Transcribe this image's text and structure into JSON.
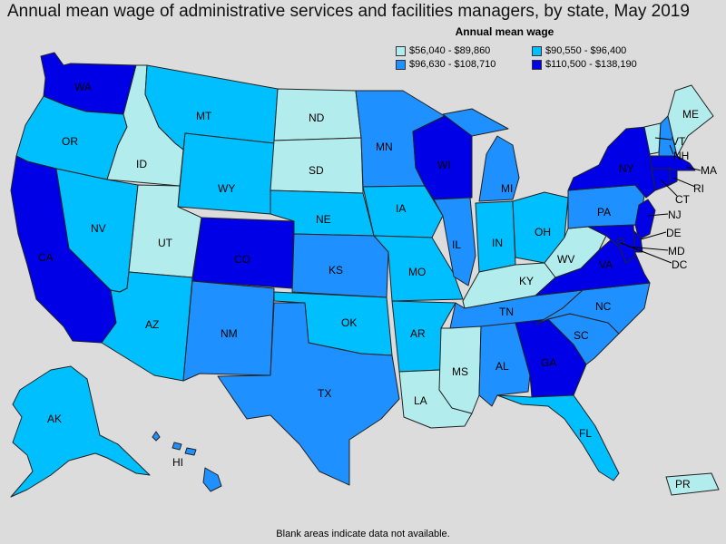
{
  "title": "Annual mean wage of administrative services and facilities managers, by state, May 2019",
  "legend": {
    "title": "Annual mean wage",
    "items": [
      {
        "label": "$56,040 - $89,860",
        "color": "#b3ecec"
      },
      {
        "label": "$90,550 - $96,400",
        "color": "#00bfff"
      },
      {
        "label": "$96,630 - $108,710",
        "color": "#1e90ff"
      },
      {
        "label": "$110,500 - $138,190",
        "color": "#0000e6"
      }
    ]
  },
  "footnote": "Blank areas indicate data not available.",
  "states": {
    "WA": {
      "label": "WA",
      "tier": 3
    },
    "OR": {
      "label": "OR",
      "tier": 1
    },
    "CA": {
      "label": "CA",
      "tier": 3
    },
    "ID": {
      "label": "ID",
      "tier": 0
    },
    "NV": {
      "label": "NV",
      "tier": 1
    },
    "MT": {
      "label": "MT",
      "tier": 1
    },
    "WY": {
      "label": "WY",
      "tier": 1
    },
    "UT": {
      "label": "UT",
      "tier": 0
    },
    "AZ": {
      "label": "AZ",
      "tier": 1
    },
    "CO": {
      "label": "CO",
      "tier": 3
    },
    "NM": {
      "label": "NM",
      "tier": 2
    },
    "ND": {
      "label": "ND",
      "tier": 0
    },
    "SD": {
      "label": "SD",
      "tier": 0
    },
    "NE": {
      "label": "NE",
      "tier": 1
    },
    "KS": {
      "label": "KS",
      "tier": 2
    },
    "OK": {
      "label": "OK",
      "tier": 1
    },
    "TX": {
      "label": "TX",
      "tier": 2
    },
    "MN": {
      "label": "MN",
      "tier": 2
    },
    "IA": {
      "label": "IA",
      "tier": 1
    },
    "MO": {
      "label": "MO",
      "tier": 1
    },
    "AR": {
      "label": "AR",
      "tier": 1
    },
    "LA": {
      "label": "LA",
      "tier": 0
    },
    "WI": {
      "label": "WI",
      "tier": 3
    },
    "IL": {
      "label": "IL",
      "tier": 2
    },
    "MI": {
      "label": "MI",
      "tier": 2
    },
    "IN": {
      "label": "IN",
      "tier": 1
    },
    "OH": {
      "label": "OH",
      "tier": 1
    },
    "KY": {
      "label": "KY",
      "tier": 0
    },
    "TN": {
      "label": "TN",
      "tier": 2
    },
    "MS": {
      "label": "MS",
      "tier": 0
    },
    "AL": {
      "label": "AL",
      "tier": 2
    },
    "GA": {
      "label": "GA",
      "tier": 3
    },
    "FL": {
      "label": "FL",
      "tier": 1
    },
    "SC": {
      "label": "SC",
      "tier": 2
    },
    "NC": {
      "label": "NC",
      "tier": 2
    },
    "VA": {
      "label": "VA",
      "tier": 3
    },
    "WV": {
      "label": "WV",
      "tier": 0
    },
    "PA": {
      "label": "PA",
      "tier": 2
    },
    "NY": {
      "label": "NY",
      "tier": 3
    },
    "VT": {
      "label": "VT",
      "tier": 0
    },
    "NH": {
      "label": "NH",
      "tier": 2
    },
    "ME": {
      "label": "ME",
      "tier": 0
    },
    "MA": {
      "label": "MA",
      "tier": 3
    },
    "RI": {
      "label": "RI",
      "tier": 3
    },
    "CT": {
      "label": "CT",
      "tier": 3
    },
    "NJ": {
      "label": "NJ",
      "tier": 3
    },
    "DE": {
      "label": "DE",
      "tier": 3
    },
    "MD": {
      "label": "MD",
      "tier": 3
    },
    "DC": {
      "label": "DC",
      "tier": 3
    },
    "AK": {
      "label": "AK",
      "tier": 1
    },
    "HI": {
      "label": "HI",
      "tier": 2
    },
    "PR": {
      "label": "PR",
      "tier": 0
    }
  }
}
